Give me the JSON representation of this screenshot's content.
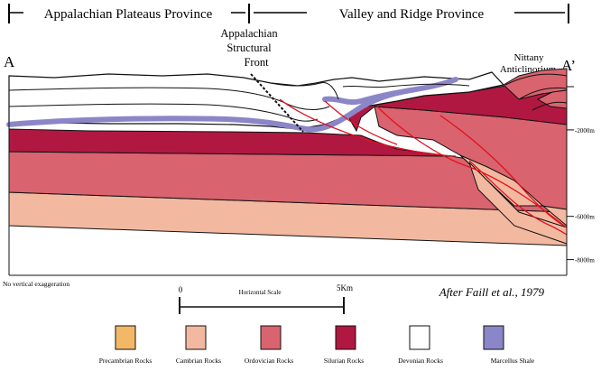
{
  "header": {
    "left_province": "Appalachian Plateaus Province",
    "right_province": "Valley and Ridge Province"
  },
  "section": {
    "left_end": "A",
    "right_end": "A’",
    "front_label_lines": [
      "Appalachian",
      "Structural",
      "Front"
    ],
    "anticline_label_lines": [
      "Nittany",
      "Anticlinorium"
    ]
  },
  "depth_scale": {
    "ticks": [
      {
        "depth_m": 0,
        "label": ""
      },
      {
        "depth_m": 2000,
        "label": "-2000m"
      },
      {
        "depth_m": 6000,
        "label": "-6000m"
      },
      {
        "depth_m": 8000,
        "label": "-8000m"
      }
    ]
  },
  "notes": {
    "exaggeration": "No vertical exaggeration",
    "citation": "After Faill et al., 1979"
  },
  "horizontal_scale": {
    "title": "Horizontal Scale",
    "min_label": "0",
    "max_label": "5Km"
  },
  "legend": [
    {
      "key": "precambrian",
      "label": "Precambrian Rocks",
      "color": "#f2b866"
    },
    {
      "key": "cambrian",
      "label": "Cambrian Rocks",
      "color": "#f2b9a0"
    },
    {
      "key": "ordovician",
      "label": "Ordovician Rocks",
      "color": "#d9636e"
    },
    {
      "key": "silurian",
      "label": "Silurian Rocks",
      "color": "#b01842"
    },
    {
      "key": "devonian",
      "label": "Devonian Rocks",
      "color": "#ffffff"
    },
    {
      "key": "marcellus",
      "label": "Marcellus Shale",
      "color": "#8b86c8"
    }
  ],
  "colors": {
    "fault": "#e3101e",
    "outline": "#111111"
  }
}
